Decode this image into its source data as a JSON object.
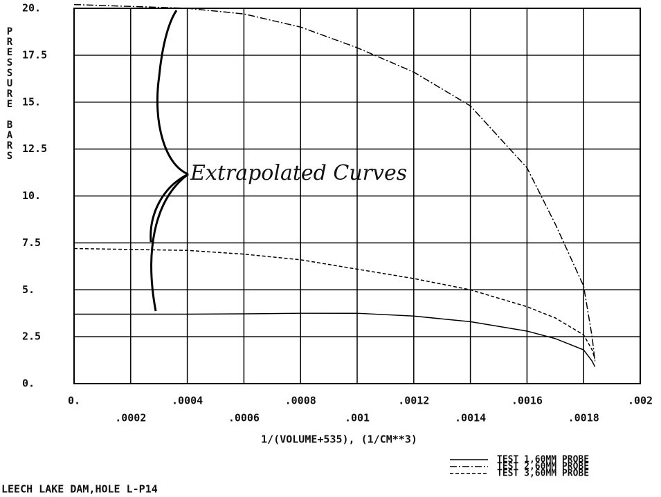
{
  "chart_data": {
    "type": "line",
    "y_label": "PRESSURE BARS",
    "x_label": "1/(VOLUME+535), (1/CM**3)",
    "footer": "LEECH LAKE DAM,HOLE L-P14",
    "annotation": "Extrapolated Curves",
    "xlim": [
      0,
      0.002
    ],
    "ylim": [
      0,
      20
    ],
    "grid": true,
    "xticks": [
      {
        "value": 0,
        "label": "0."
      },
      {
        "value": 0.0002,
        "label": ".0002"
      },
      {
        "value": 0.0004,
        "label": ".0004"
      },
      {
        "value": 0.0006,
        "label": ".0006"
      },
      {
        "value": 0.0008,
        "label": ".0008"
      },
      {
        "value": 0.001,
        "label": ".001"
      },
      {
        "value": 0.0012,
        "label": ".0012"
      },
      {
        "value": 0.0014,
        "label": ".0014"
      },
      {
        "value": 0.0016,
        "label": ".0016"
      },
      {
        "value": 0.0018,
        "label": ".0018"
      },
      {
        "value": 0.002,
        "label": ".002"
      }
    ],
    "yticks": [
      {
        "value": 0,
        "label": "0."
      },
      2.5,
      {
        "value": 5,
        "label": "5."
      },
      7.5,
      {
        "value": 10,
        "label": "10."
      },
      12.5,
      {
        "value": 15,
        "label": "15."
      },
      17.5,
      {
        "value": 20,
        "label": "20."
      }
    ],
    "x": [
      0,
      0.0004,
      0.0006,
      0.0008,
      0.001,
      0.0012,
      0.0014,
      0.0016,
      0.0017,
      0.0018,
      0.00183,
      0.00184
    ],
    "series": [
      {
        "name": "TEST 1,60MM PROBE",
        "color": "#000000",
        "dash": "solid",
        "values": [
          3.7,
          3.7,
          3.72,
          3.75,
          3.75,
          3.6,
          3.3,
          2.8,
          2.4,
          1.8,
          1.2,
          0.9
        ]
      },
      {
        "name": "TEST 2,60MM PROBE",
        "color": "#000000",
        "dash": "dashdot",
        "values": [
          20.2,
          20.0,
          19.7,
          19.0,
          17.9,
          16.6,
          14.8,
          11.5,
          8.5,
          5.2,
          2.5,
          1.2
        ]
      },
      {
        "name": "TEST 3,60MM PROBE",
        "color": "#000000",
        "dash": "dashed",
        "values": [
          7.2,
          7.1,
          6.9,
          6.6,
          6.1,
          5.6,
          5.0,
          4.1,
          3.5,
          2.6,
          1.8,
          1.3
        ]
      }
    ]
  }
}
